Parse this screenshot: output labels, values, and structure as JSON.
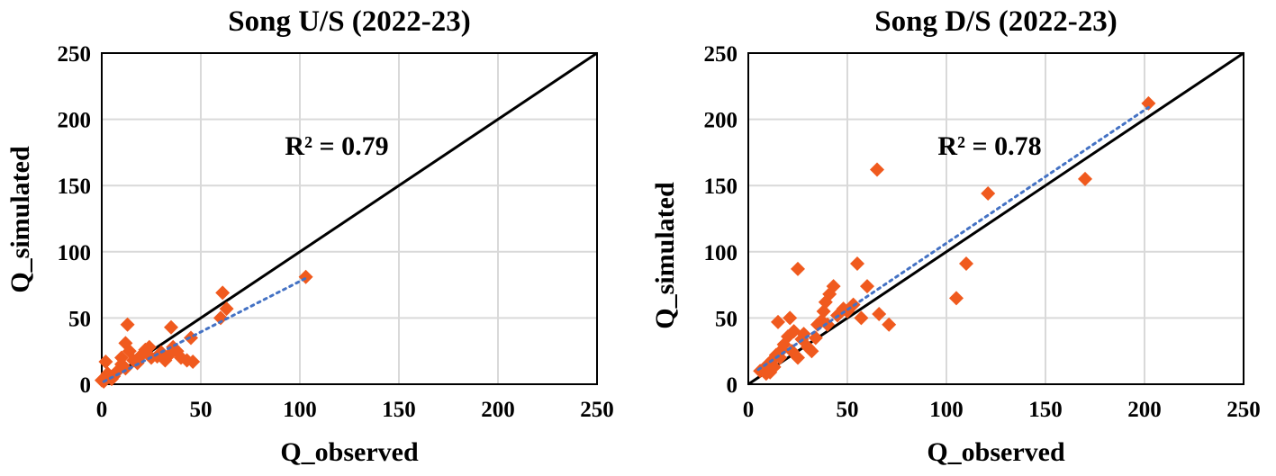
{
  "chart_data": [
    {
      "type": "scatter",
      "title": "Song U/S (2022-23)",
      "xlabel": "Q_observed",
      "ylabel": "Q_simulated",
      "xlim": [
        0,
        250
      ],
      "ylim": [
        0,
        250
      ],
      "xticks": [
        "0",
        "50",
        "100",
        "150",
        "200",
        "250"
      ],
      "yticks": [
        "0",
        "50",
        "100",
        "150",
        "200",
        "250"
      ],
      "grid": true,
      "annotation": "R² = 0.79",
      "marker_color": "#f05a1e",
      "trendline_color": "#4472c4",
      "trendline": [
        [
          1,
          2
        ],
        [
          103,
          80
        ]
      ],
      "one_to_one_line": [
        [
          0,
          0
        ],
        [
          250,
          250
        ]
      ],
      "points": [
        [
          0,
          3
        ],
        [
          1,
          2
        ],
        [
          2,
          5
        ],
        [
          2,
          17
        ],
        [
          3,
          8
        ],
        [
          5,
          4
        ],
        [
          6,
          6
        ],
        [
          8,
          10
        ],
        [
          10,
          15
        ],
        [
          10,
          20
        ],
        [
          12,
          12
        ],
        [
          12,
          31
        ],
        [
          13,
          45
        ],
        [
          14,
          25
        ],
        [
          16,
          18
        ],
        [
          18,
          16
        ],
        [
          20,
          22
        ],
        [
          22,
          26
        ],
        [
          24,
          28
        ],
        [
          25,
          20
        ],
        [
          28,
          21
        ],
        [
          30,
          24
        ],
        [
          32,
          18
        ],
        [
          34,
          22
        ],
        [
          35,
          43
        ],
        [
          36,
          28
        ],
        [
          38,
          25
        ],
        [
          40,
          20
        ],
        [
          43,
          18
        ],
        [
          45,
          35
        ],
        [
          46,
          17
        ],
        [
          60,
          50
        ],
        [
          61,
          69
        ],
        [
          63,
          57
        ],
        [
          103,
          81
        ]
      ]
    },
    {
      "type": "scatter",
      "title": "Song D/S (2022-23)",
      "xlabel": "Q_observed",
      "ylabel": "Q_simulated",
      "xlim": [
        0,
        250
      ],
      "ylim": [
        0,
        250
      ],
      "xticks": [
        "0",
        "50",
        "100",
        "150",
        "200",
        "250"
      ],
      "yticks": [
        "0",
        "50",
        "100",
        "150",
        "200",
        "250"
      ],
      "grid": true,
      "annotation": "R² = 0.78",
      "marker_color": "#f05a1e",
      "trendline_color": "#4472c4",
      "trendline": [
        [
          5,
          11
        ],
        [
          202,
          209
        ]
      ],
      "one_to_one_line": [
        [
          0,
          0
        ],
        [
          250,
          250
        ]
      ],
      "points": [
        [
          6,
          10
        ],
        [
          8,
          12
        ],
        [
          9,
          8
        ],
        [
          10,
          15
        ],
        [
          11,
          9
        ],
        [
          12,
          18
        ],
        [
          13,
          13
        ],
        [
          14,
          22
        ],
        [
          15,
          47
        ],
        [
          16,
          20
        ],
        [
          17,
          26
        ],
        [
          18,
          30
        ],
        [
          20,
          36
        ],
        [
          21,
          50
        ],
        [
          22,
          25
        ],
        [
          23,
          40
        ],
        [
          25,
          20
        ],
        [
          25,
          87
        ],
        [
          27,
          34
        ],
        [
          28,
          38
        ],
        [
          30,
          28
        ],
        [
          32,
          25
        ],
        [
          34,
          35
        ],
        [
          35,
          45
        ],
        [
          37,
          48
        ],
        [
          38,
          55
        ],
        [
          39,
          62
        ],
        [
          40,
          45
        ],
        [
          41,
          68
        ],
        [
          43,
          74
        ],
        [
          45,
          52
        ],
        [
          48,
          57
        ],
        [
          50,
          55
        ],
        [
          53,
          60
        ],
        [
          55,
          91
        ],
        [
          57,
          50
        ],
        [
          60,
          74
        ],
        [
          65,
          162
        ],
        [
          66,
          53
        ],
        [
          71,
          45
        ],
        [
          105,
          65
        ],
        [
          110,
          91
        ],
        [
          121,
          144
        ],
        [
          170,
          155
        ],
        [
          202,
          212
        ]
      ]
    }
  ]
}
